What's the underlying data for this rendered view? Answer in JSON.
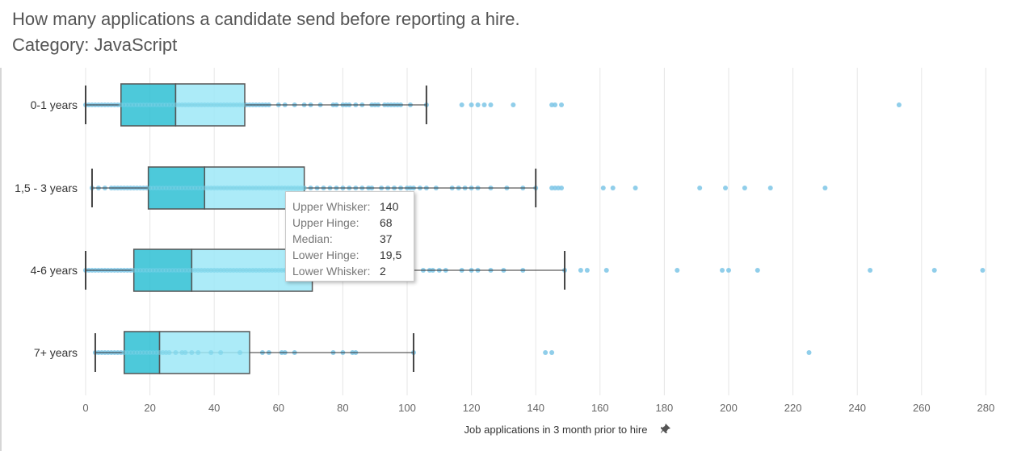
{
  "header": {
    "title": "How many applications a candidate send before reporting a hire.",
    "subtitle": "Category: JavaScript"
  },
  "colors": {
    "lower_box": "#2ec0d3",
    "upper_box": "#9de8f7",
    "points": "#7cc6e6",
    "whisker": "#333333",
    "grid": "#e6e6e6"
  },
  "chart_data": {
    "type": "boxplot",
    "orientation": "horizontal",
    "xlabel": "Job applications in 3 month prior to hire",
    "xlim": [
      0,
      290
    ],
    "xticks": [
      0,
      20,
      40,
      60,
      80,
      100,
      120,
      140,
      160,
      180,
      200,
      220,
      240,
      260,
      280
    ],
    "grid": true,
    "categories": [
      "0-1 years",
      "1,5 - 3 years",
      "4-6 years",
      "7+ years"
    ],
    "boxes": [
      {
        "category": "0-1 years",
        "lower_whisker": 0,
        "lower_hinge": 11,
        "median": 28,
        "upper_hinge": 49.5,
        "upper_whisker": 106,
        "points": [
          0,
          1,
          2,
          3,
          4,
          5,
          6,
          7,
          8,
          9,
          10,
          11,
          12,
          13,
          14,
          15,
          16,
          17,
          18,
          19,
          20,
          21,
          22,
          23,
          24,
          25,
          26,
          27,
          28,
          29,
          30,
          31,
          32,
          33,
          34,
          35,
          36,
          37,
          38,
          39,
          40,
          41,
          42,
          43,
          44,
          45,
          46,
          47,
          48,
          49,
          50,
          51,
          52,
          53,
          54,
          55,
          56,
          57,
          60,
          62,
          65,
          68,
          70,
          73,
          77,
          78,
          80,
          81,
          82,
          84,
          86,
          89,
          90,
          91,
          93,
          94,
          95,
          96,
          97,
          98,
          101,
          106,
          117,
          120,
          122,
          124,
          126,
          133,
          145,
          146,
          148,
          253
        ]
      },
      {
        "category": "1,5 - 3 years",
        "lower_whisker": 2,
        "lower_hinge": 19.5,
        "median": 37,
        "upper_hinge": 68,
        "upper_whisker": 140,
        "points": [
          2,
          4,
          6,
          8,
          9,
          10,
          11,
          12,
          13,
          14,
          15,
          16,
          17,
          18,
          19,
          20,
          21,
          22,
          23,
          24,
          25,
          26,
          27,
          28,
          29,
          30,
          31,
          32,
          33,
          34,
          35,
          36,
          37,
          38,
          39,
          40,
          41,
          42,
          43,
          44,
          45,
          46,
          47,
          48,
          49,
          50,
          51,
          52,
          53,
          54,
          55,
          56,
          57,
          58,
          59,
          60,
          61,
          62,
          63,
          64,
          65,
          66,
          67,
          68,
          70,
          72,
          74,
          76,
          78,
          80,
          82,
          84,
          86,
          88,
          89,
          92,
          94,
          96,
          98,
          100,
          101,
          102,
          104,
          106,
          109,
          114,
          116,
          118,
          120,
          122,
          126,
          131,
          136,
          140,
          145,
          146,
          147,
          148,
          161,
          164,
          171,
          191,
          199,
          205,
          213,
          230
        ]
      },
      {
        "category": "4-6 years",
        "lower_whisker": 0,
        "lower_hinge": 15,
        "median": 33,
        "upper_hinge": 70.5,
        "upper_whisker": 149,
        "points": [
          0,
          1,
          2,
          3,
          4,
          5,
          6,
          7,
          8,
          9,
          10,
          11,
          12,
          13,
          14,
          15,
          16,
          17,
          18,
          19,
          20,
          21,
          22,
          23,
          24,
          25,
          26,
          27,
          28,
          29,
          30,
          31,
          32,
          33,
          34,
          35,
          36,
          37,
          38,
          39,
          40,
          41,
          42,
          43,
          44,
          45,
          46,
          47,
          48,
          49,
          50,
          51,
          52,
          53,
          54,
          55,
          56,
          57,
          58,
          59,
          60,
          61,
          62,
          63,
          64,
          65,
          66,
          67,
          68,
          69,
          70,
          105,
          107,
          108,
          110,
          112,
          117,
          120,
          122,
          126,
          130,
          136,
          149,
          154,
          156,
          162,
          184,
          198,
          200,
          209,
          244,
          264,
          279
        ]
      },
      {
        "category": "7+ years",
        "lower_whisker": 3,
        "lower_hinge": 12,
        "median": 23,
        "upper_hinge": 51,
        "upper_whisker": 102,
        "points": [
          3,
          4,
          5,
          6,
          7,
          8,
          9,
          10,
          11,
          12,
          13,
          14,
          15,
          16,
          17,
          18,
          19,
          20,
          21,
          22,
          23,
          24,
          25,
          26,
          28,
          30,
          31,
          33,
          35,
          39,
          42,
          48,
          55,
          57,
          61,
          62,
          65,
          77,
          80,
          83,
          84,
          102,
          143,
          145,
          225
        ]
      }
    ]
  },
  "tooltip": {
    "rows": [
      {
        "key": "Upper Whisker:",
        "value": "140"
      },
      {
        "key": "Upper Hinge:",
        "value": "68"
      },
      {
        "key": "Median:",
        "value": "37"
      },
      {
        "key": "Lower Hinge:",
        "value": "19,5"
      },
      {
        "key": "Lower Whisker:",
        "value": "2"
      }
    ]
  },
  "icons": {
    "axis_pin": "pin-icon"
  }
}
